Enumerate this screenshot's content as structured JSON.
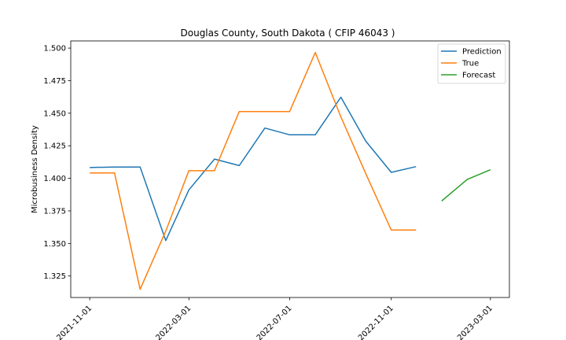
{
  "chart_data": {
    "type": "line",
    "title": "Douglas County, South Dakota ( CFIP 46043 )",
    "xlabel": "",
    "ylabel": "Microbusiness Density",
    "xlim": [
      "2021-10-09",
      "2023-03-24"
    ],
    "ylim": [
      1.3085,
      1.5055
    ],
    "x_ticks": [
      "2021-11-01",
      "2022-03-01",
      "2022-07-01",
      "2022-11-01",
      "2023-03-01"
    ],
    "y_ticks": [
      1.325,
      1.35,
      1.375,
      1.4,
      1.425,
      1.45,
      1.475,
      1.5
    ],
    "y_tick_labels": [
      "1.325",
      "1.350",
      "1.375",
      "1.400",
      "1.425",
      "1.450",
      "1.475",
      "1.500"
    ],
    "grid": false,
    "legend": "top-right",
    "series": [
      {
        "name": "Prediction",
        "color": "#1f77b4",
        "x": [
          "2021-11-01",
          "2021-12-01",
          "2022-01-01",
          "2022-02-01",
          "2022-03-01",
          "2022-04-01",
          "2022-05-01",
          "2022-06-01",
          "2022-07-01",
          "2022-08-01",
          "2022-09-01",
          "2022-10-01",
          "2022-11-01",
          "2022-12-01"
        ],
        "y": [
          1.4083,
          1.4087,
          1.4087,
          1.3522,
          1.3911,
          1.4148,
          1.4098,
          1.4386,
          1.4334,
          1.4334,
          1.4623,
          1.4287,
          1.4046,
          1.409
        ]
      },
      {
        "name": "True",
        "color": "#ff7f0e",
        "x": [
          "2021-11-01",
          "2021-12-01",
          "2022-01-01",
          "2022-02-01",
          "2022-03-01",
          "2022-04-01",
          "2022-05-01",
          "2022-06-01",
          "2022-07-01",
          "2022-08-01",
          "2022-09-01",
          "2022-10-01",
          "2022-11-01",
          "2022-12-01"
        ],
        "y": [
          1.4041,
          1.4041,
          1.3148,
          1.3595,
          1.4059,
          1.4059,
          1.4513,
          1.4513,
          1.4513,
          1.4966,
          1.4472,
          1.4038,
          1.3603,
          1.3603
        ]
      },
      {
        "name": "Forecast",
        "color": "#2ca02c",
        "x": [
          "2023-01-01",
          "2023-02-01",
          "2023-03-01"
        ],
        "y": [
          1.3826,
          1.3992,
          1.4066
        ]
      }
    ]
  }
}
